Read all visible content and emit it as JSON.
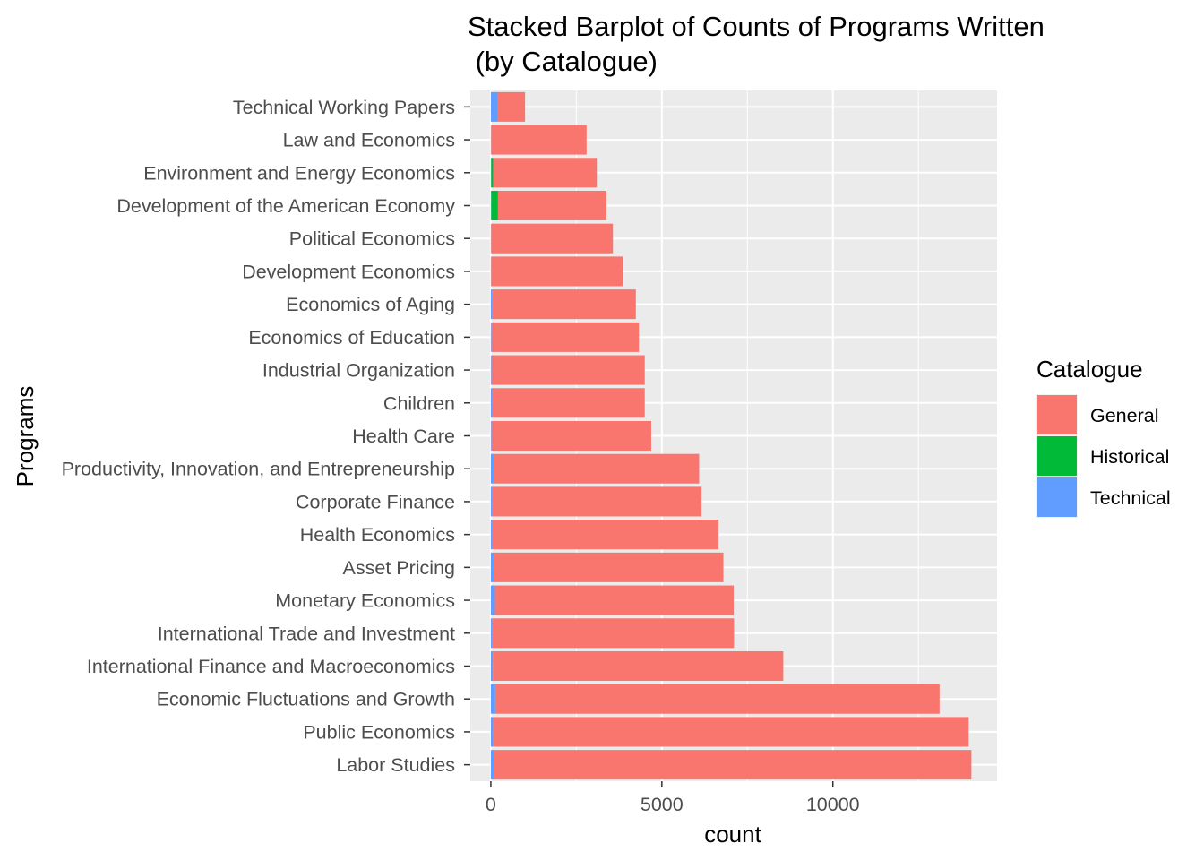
{
  "chart_data": {
    "type": "bar",
    "orientation": "horizontal",
    "stacked": true,
    "title_lines": [
      "Stacked Barplot of Counts of Programs Written",
      " (by Catalogue)"
    ],
    "xlabel": "count",
    "ylabel": "Programs",
    "xlim": [
      -600,
      14800
    ],
    "x_ticks": [
      0,
      5000,
      10000
    ],
    "x_tick_labels": [
      "0",
      "5000",
      "10000"
    ],
    "grid": true,
    "legend": {
      "title": "Catalogue",
      "placement": "right",
      "entries": [
        {
          "name": "General",
          "color": "#F8766D"
        },
        {
          "name": "Historical",
          "color": "#00BA38"
        },
        {
          "name": "Technical",
          "color": "#619CFF"
        }
      ]
    },
    "categories": [
      "Technical Working Papers",
      "Law and Economics",
      "Environment and Energy Economics",
      "Development of the American Economy",
      "Political Economics",
      "Development Economics",
      "Economics of Aging",
      "Economics of Education",
      "Industrial Organization",
      "Children",
      "Health Care",
      "Productivity, Innovation, and Entrepreneurship",
      "Corporate Finance",
      "Health Economics",
      "Asset Pricing",
      "Monetary Economics",
      "International Trade and Investment",
      "International Finance and Macroeconomics",
      "Economic Fluctuations and Growth",
      "Public Economics",
      "Labor Studies"
    ],
    "series": [
      {
        "name": "Technical",
        "color": "#619CFF",
        "values": [
          210,
          10,
          10,
          10,
          10,
          10,
          30,
          20,
          20,
          40,
          20,
          80,
          30,
          40,
          80,
          120,
          30,
          60,
          130,
          70,
          100
        ]
      },
      {
        "name": "Historical",
        "color": "#00BA38",
        "values": [
          0,
          0,
          60,
          200,
          0,
          0,
          0,
          0,
          0,
          0,
          0,
          0,
          0,
          0,
          0,
          0,
          0,
          0,
          0,
          0,
          0
        ]
      },
      {
        "name": "General",
        "color": "#F8766D",
        "values": [
          790,
          2790,
          3030,
          3170,
          3560,
          3850,
          4210,
          4310,
          4480,
          4460,
          4670,
          6010,
          6130,
          6620,
          6720,
          6980,
          7080,
          8490,
          12990,
          13900,
          13950
        ]
      }
    ]
  }
}
